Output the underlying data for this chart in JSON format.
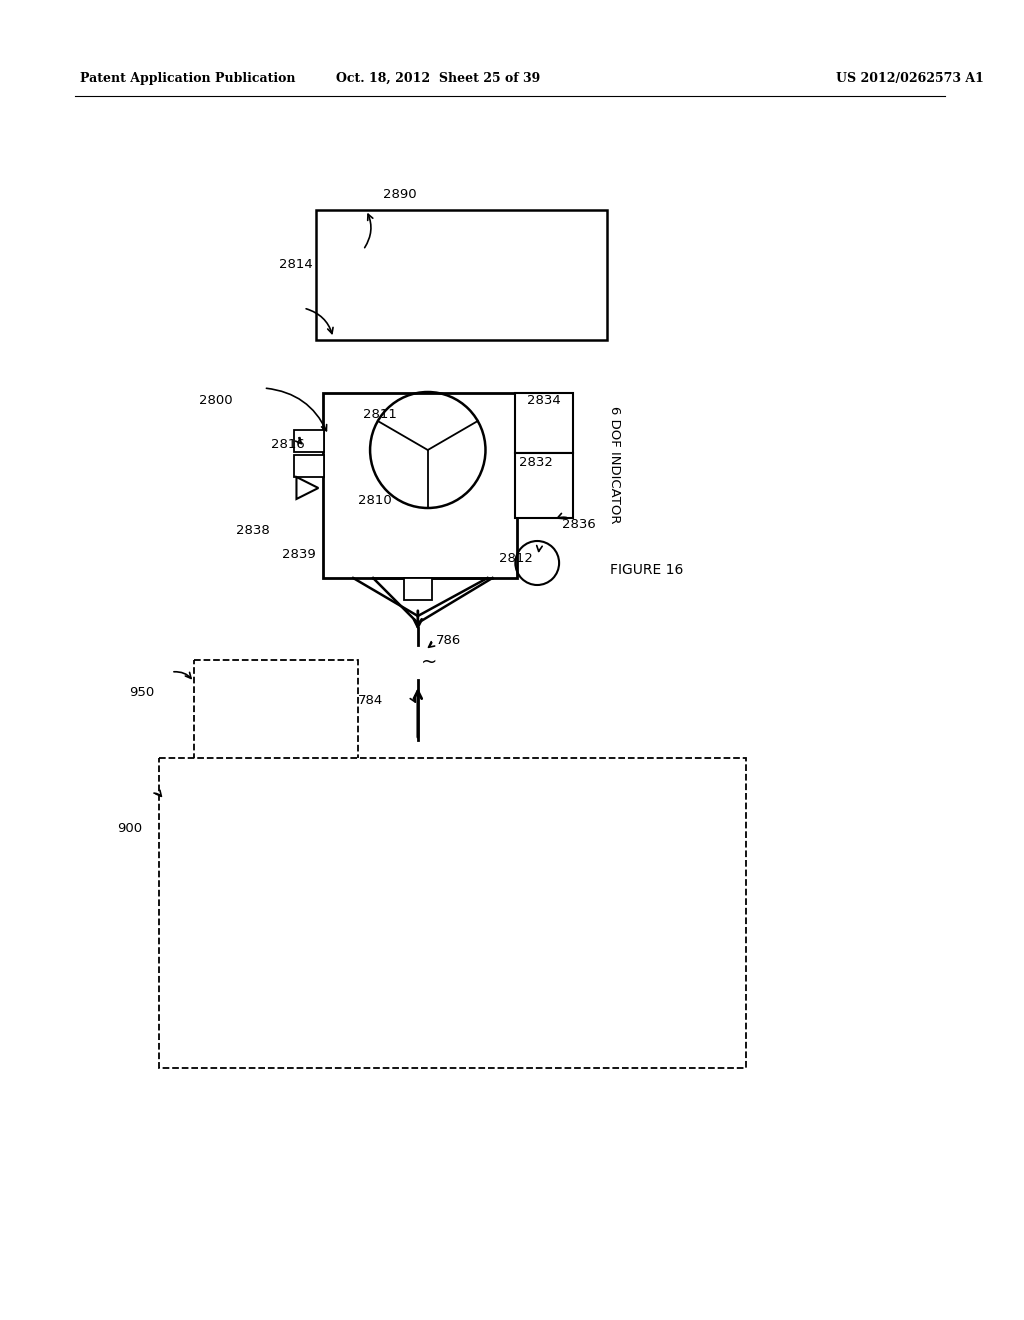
{
  "bg_color": "#ffffff",
  "header_left": "Patent Application Publication",
  "header_mid": "Oct. 18, 2012  Sheet 25 of 39",
  "header_right": "US 2012/0262573 A1",
  "figure_label": "FIGURE 16",
  "dof_label": "6 DOF INDICATOR"
}
